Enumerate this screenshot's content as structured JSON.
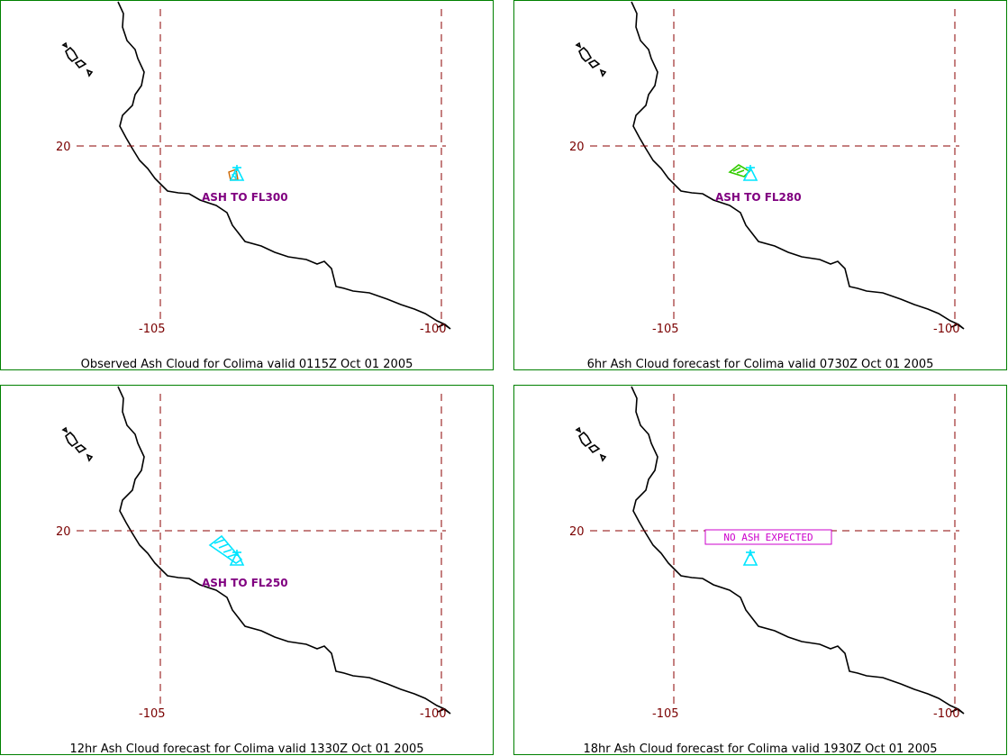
{
  "panels": [
    {
      "caption": "Observed Ash Cloud for Colima valid 0115Z Oct 01 2005",
      "ash_label": "ASH TO FL300",
      "ash_label_boxed": false,
      "cloud_color": "#00e5ff"
    },
    {
      "caption": "6hr Ash Cloud forecast for Colima valid 0730Z Oct 01 2005",
      "ash_label": "ASH TO FL280",
      "ash_label_boxed": false,
      "cloud_color": "#33cc00"
    },
    {
      "caption": "12hr Ash Cloud forecast for Colima valid 1330Z Oct 01 2005",
      "ash_label": "ASH TO FL250",
      "ash_label_boxed": false,
      "cloud_color": "#00e5ff"
    },
    {
      "caption": "18hr Ash Cloud forecast for Colima valid 1930Z Oct 01 2005",
      "ash_label": "NO ASH EXPECTED",
      "ash_label_boxed": true,
      "cloud_color": ""
    }
  ],
  "grid": {
    "lat_label": "20",
    "lon_labels": [
      "-105",
      "-100"
    ]
  },
  "colors": {
    "border": "#008000",
    "grid": "#8b0000",
    "coast": "#000000",
    "volcano": "#00e5ff",
    "ash_text": "#800080",
    "no_ash_box": "#cc00cc"
  },
  "icons": {
    "volcano": "volcano-triangle-icon"
  }
}
